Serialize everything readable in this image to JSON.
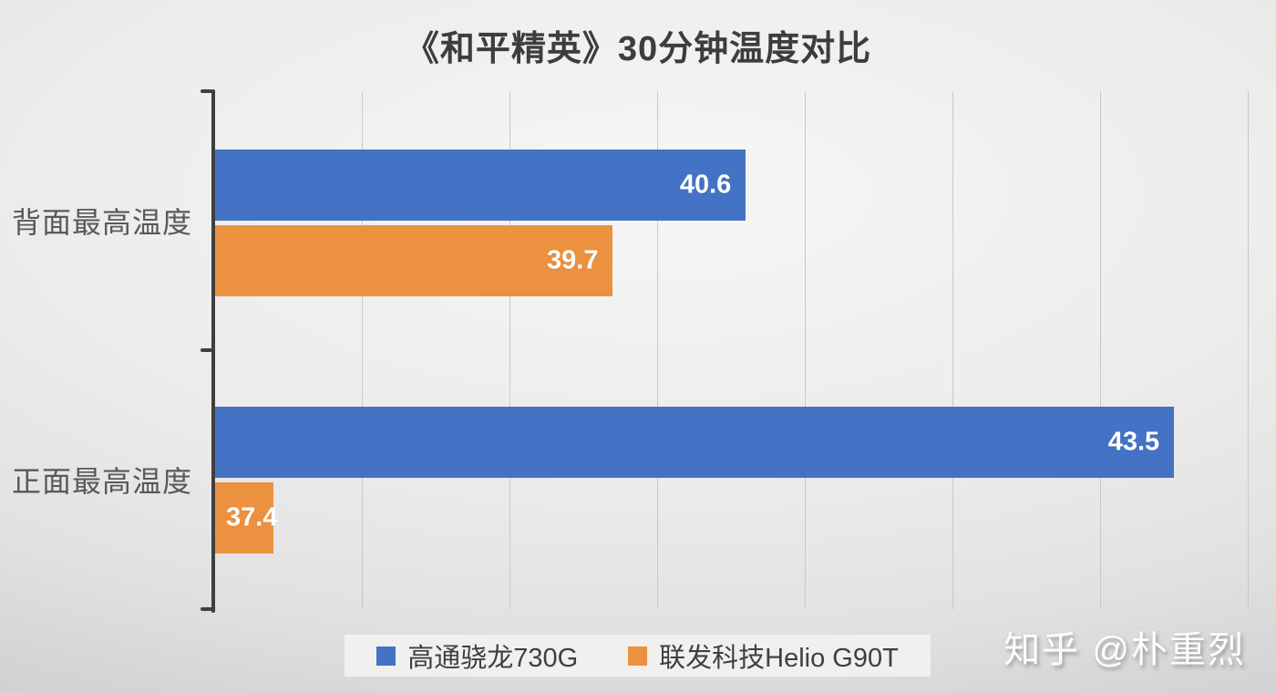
{
  "title": "《和平精英》30分钟温度对比",
  "watermark": "知乎 @朴重烈",
  "legend": {
    "items": [
      {
        "label": "高通骁龙730G",
        "color": "#4472C4"
      },
      {
        "label": "联发科技Helio G90T",
        "color": "#EC9140"
      }
    ]
  },
  "chart_data": {
    "type": "bar",
    "orientation": "horizontal",
    "title": "《和平精英》30分钟温度对比",
    "categories": [
      "背面最高温度",
      "正面最高温度"
    ],
    "series": [
      {
        "name": "高通骁龙730G",
        "color": "#4472C4",
        "values": [
          40.6,
          43.5
        ]
      },
      {
        "name": "联发科技Helio G90T",
        "color": "#EC9140",
        "values": [
          39.7,
          37.4
        ]
      }
    ],
    "xlim": [
      37,
      44.19
    ],
    "grid_step": 1,
    "grid": true,
    "xlabel": "",
    "ylabel": "",
    "legend_position": "bottom",
    "data_labels": "inside-end",
    "colors": {
      "axis": "#3F3F3F",
      "gridline": "#C8C9CA",
      "data_label_text": "#FFFFFF",
      "category_text": "#595959",
      "title_text": "#3D3D3D",
      "legend_bg": "#F0F0EF"
    }
  }
}
